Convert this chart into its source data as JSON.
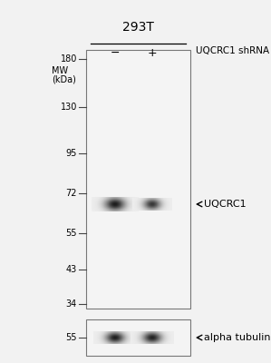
{
  "bg_color": "#f2f2f2",
  "title_text": "293T",
  "shrna_label": "UQCRC1 shRNA",
  "minus_label": "−",
  "plus_label": "+",
  "mw_label_line1": "MW",
  "mw_label_line2": "(kDa)",
  "mw_marks": [
    180,
    130,
    95,
    72,
    55,
    43,
    34
  ],
  "band1_label": "UQCRC1",
  "band2_label": "alpha tubulin",
  "panel_face": "#f0f0f0",
  "panel_edge": "#888888",
  "band_dark": 25,
  "band_light": 180
}
